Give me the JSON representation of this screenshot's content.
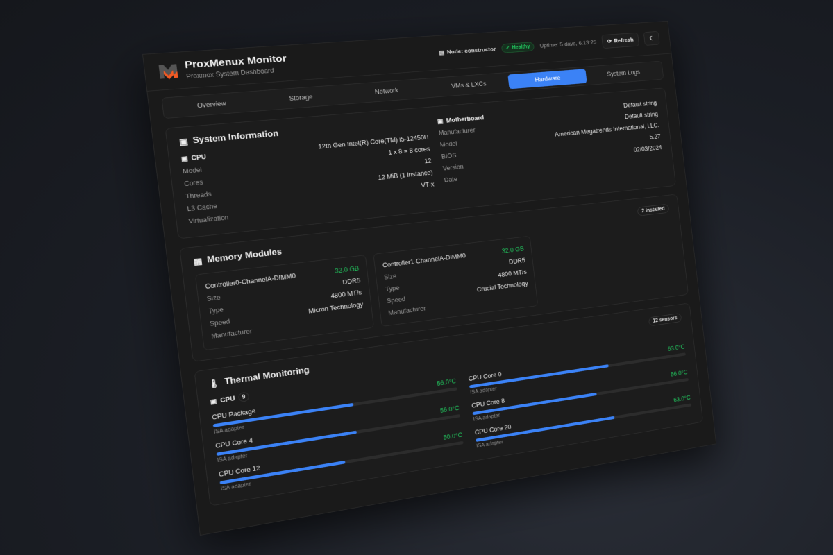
{
  "header": {
    "title": "ProxMenux Monitor",
    "subtitle": "Proxmox System Dashboard",
    "node": "Node: constructor",
    "status": "Healthy",
    "uptime": "Uptime: 5 days, 6:13:25",
    "refresh": "Refresh"
  },
  "tabs": [
    {
      "label": "Overview"
    },
    {
      "label": "Storage"
    },
    {
      "label": "Network"
    },
    {
      "label": "VMs & LXCs"
    },
    {
      "label": "Hardware",
      "active": true
    },
    {
      "label": "System Logs"
    }
  ],
  "system": {
    "title": "System Information",
    "cpu": {
      "heading": "CPU",
      "labels": [
        "Model",
        "Cores",
        "Threads",
        "L3 Cache",
        "Virtualization"
      ],
      "values": [
        "12th Gen Intel(R) Core(TM) i5-12450H",
        "1 x 8 = 8 cores",
        "12",
        "12 MiB (1 instance)",
        "VT-x"
      ]
    },
    "motherboard": {
      "heading": "Motherboard",
      "labels": [
        "Manufacturer",
        "Model",
        "BIOS",
        "Version",
        "Date"
      ],
      "values": [
        "Default string",
        "Default string",
        "American Megatrends International, LLC.",
        "5.27",
        "02/03/2024"
      ]
    }
  },
  "memory": {
    "title": "Memory Modules",
    "badge": "2 installed",
    "labels": [
      "Size",
      "Type",
      "Speed",
      "Manufacturer"
    ],
    "modules": [
      {
        "name": "Controller0-ChannelA-DIMM0",
        "values": [
          "32.0 GB",
          "DDR5",
          "4800 MT/s",
          "Micron Technology"
        ]
      },
      {
        "name": "Controller1-ChannelA-DIMM0",
        "values": [
          "32.0 GB",
          "DDR5",
          "4800 MT/s",
          "Crucial Technology"
        ]
      }
    ]
  },
  "thermal": {
    "title": "Thermal Monitoring",
    "badge": "12 sensors",
    "group": "CPU",
    "group_count": "9",
    "sensors": [
      {
        "name": "CPU Package",
        "temp": "56.0°C",
        "value": 56,
        "adapter": "ISA adapter"
      },
      {
        "name": "CPU Core 0",
        "temp": "63.0°C",
        "value": 63,
        "adapter": "ISA adapter"
      },
      {
        "name": "CPU Core 4",
        "temp": "56.0°C",
        "value": 56,
        "adapter": "ISA adapter"
      },
      {
        "name": "CPU Core 8",
        "temp": "56.0°C",
        "value": 56,
        "adapter": "ISA adapter"
      },
      {
        "name": "CPU Core 12",
        "temp": "50.0°C",
        "value": 50,
        "adapter": "ISA adapter"
      },
      {
        "name": "CPU Core 20",
        "temp": "63.0°C",
        "value": 63,
        "adapter": "ISA adapter"
      }
    ]
  },
  "colors": {
    "accent": "#3b82f6",
    "ok": "#22c55e",
    "logo_orange": "#f15a24"
  }
}
